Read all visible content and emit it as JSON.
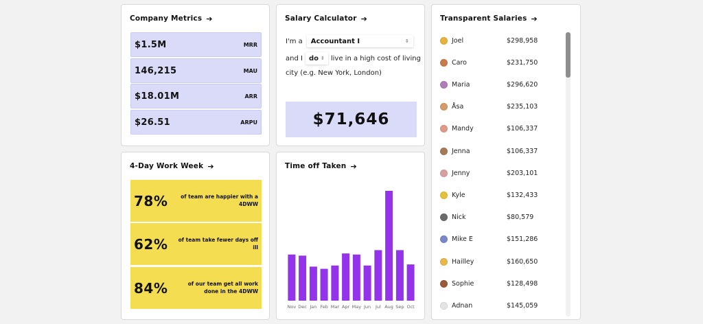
{
  "company_metrics": {
    "title": "Company Metrics",
    "items": [
      {
        "value": "$1.5M",
        "label": "MRR"
      },
      {
        "value": "146,215",
        "label": "MAU"
      },
      {
        "value": "$18.01M",
        "label": "ARR"
      },
      {
        "value": "$26.51",
        "label": "ARPU"
      }
    ]
  },
  "four_day_week": {
    "title": "4-Day Work Week",
    "items": [
      {
        "pct": "78%",
        "text": "of team are happier with a 4DWW"
      },
      {
        "pct": "62%",
        "text": "of team take fewer days off ill"
      },
      {
        "pct": "84%",
        "text": "of our team get all work done in the 4DWW"
      }
    ]
  },
  "salary_calculator": {
    "title": "Salary Calculator",
    "line1_prefix": "I'm a",
    "role_value": "Accountant I",
    "line2_prefix": "and I",
    "do_value": "do",
    "line2_suffix": "live in a high cost of living",
    "line3": "city (e.g. New York, London)",
    "result": "$71,646"
  },
  "time_off": {
    "title": "Time off Taken"
  },
  "chart_data": {
    "type": "bar",
    "title": "Time off Taken",
    "categories": [
      "Nov",
      "Dec",
      "Jan",
      "Feb",
      "Mar",
      "Apr",
      "May",
      "Jun",
      "Jul",
      "Aug",
      "Sep",
      "Oct"
    ],
    "values": [
      42,
      41,
      31,
      29,
      32,
      43,
      42,
      32,
      46,
      100,
      46,
      33
    ],
    "ylim": [
      0,
      100
    ],
    "color": "#9333ea",
    "grid": false,
    "legend": "none"
  },
  "transparent_salaries": {
    "title": "Transparent Salaries",
    "people": [
      {
        "name": "Joel",
        "salary": "$298,958",
        "color": "#e6b23a"
      },
      {
        "name": "Caro",
        "salary": "$231,750",
        "color": "#c97b4d"
      },
      {
        "name": "Maria",
        "salary": "$296,620",
        "color": "#b07db8"
      },
      {
        "name": "Åsa",
        "salary": "$235,103",
        "color": "#d79a6a"
      },
      {
        "name": "Mandy",
        "salary": "$106,337",
        "color": "#e09a88"
      },
      {
        "name": "Jenna",
        "salary": "$106,337",
        "color": "#a77a57"
      },
      {
        "name": "Jenny",
        "salary": "$203,101",
        "color": "#d7a0a0"
      },
      {
        "name": "Kyle",
        "salary": "$132,433",
        "color": "#e6c23a"
      },
      {
        "name": "Nick",
        "salary": "$80,579",
        "color": "#6b6b6b"
      },
      {
        "name": "Mike E",
        "salary": "$151,286",
        "color": "#7a88c9"
      },
      {
        "name": "Hailley",
        "salary": "$160,650",
        "color": "#e8b84a"
      },
      {
        "name": "Sophie",
        "salary": "$128,498",
        "color": "#9a5a3a"
      },
      {
        "name": "Adnan",
        "salary": "$145,059",
        "color": "#e5e5e5"
      }
    ]
  }
}
